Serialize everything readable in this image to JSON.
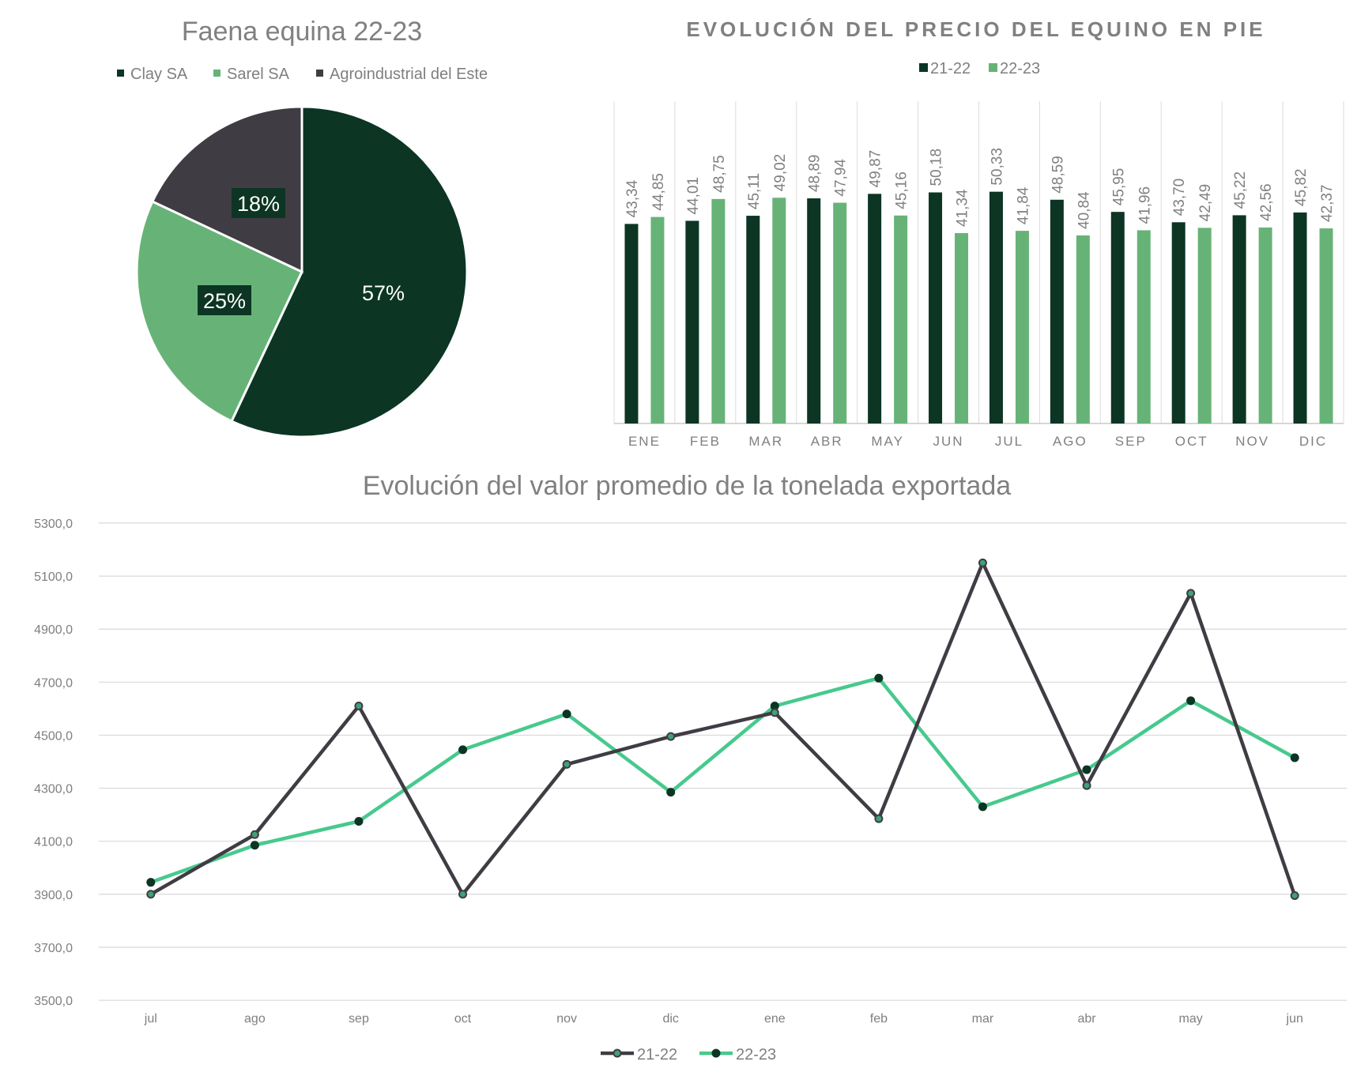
{
  "chart_data": [
    {
      "type": "pie",
      "title": "Faena equina 22-23",
      "labels": [
        "Clay SA",
        "Sarel SA",
        "Agroindustrial del Este"
      ],
      "values": [
        57,
        25,
        18
      ],
      "value_labels": [
        "57%",
        "25%",
        "18%"
      ],
      "colors": [
        "#0c3524",
        "#67b377",
        "#403c43"
      ],
      "legend": "top"
    },
    {
      "type": "bar",
      "title": "EVOLUCIÓN DEL PRECIO DEL EQUINO EN PIE",
      "categories": [
        "ENE",
        "FEB",
        "MAR",
        "ABR",
        "MAY",
        "JUN",
        "JUL",
        "AGO",
        "SEP",
        "OCT",
        "NOV",
        "DIC"
      ],
      "series": [
        {
          "name": "21-22",
          "color": "#0c3524",
          "values": [
            43.34,
            44.01,
            45.11,
            48.89,
            49.87,
            50.18,
            50.33,
            48.59,
            45.95,
            43.7,
            45.22,
            45.82
          ],
          "labels": [
            "43,34",
            "44,01",
            "45,11",
            "48,89",
            "49,87",
            "50,18",
            "50,33",
            "48,59",
            "45,95",
            "43,70",
            "45,22",
            "45,82"
          ]
        },
        {
          "name": "22-23",
          "color": "#67b377",
          "values": [
            44.85,
            48.75,
            49.02,
            47.94,
            45.16,
            41.34,
            41.84,
            40.84,
            41.96,
            42.49,
            42.56,
            42.37
          ],
          "labels": [
            "44,85",
            "48,75",
            "49,02",
            "47,94",
            "45,16",
            "41,34",
            "41,84",
            "40,84",
            "41,96",
            "42,49",
            "42,56",
            "42,37"
          ]
        }
      ],
      "ylim": [
        0,
        70
      ],
      "legend": "top",
      "grid": "vertical separators"
    },
    {
      "type": "line",
      "title": "Evolución del valor promedio de la tonelada exportada",
      "categories": [
        "jul",
        "ago",
        "sep",
        "oct",
        "nov",
        "dic",
        "ene",
        "feb",
        "mar",
        "abr",
        "may",
        "jun"
      ],
      "series": [
        {
          "name": "21-22",
          "color": "#403c43",
          "marker": "#3fa179",
          "values": [
            3900,
            4125,
            4610,
            3900,
            4390,
            4495,
            4585,
            4185,
            5150,
            4310,
            5035,
            3895
          ]
        },
        {
          "name": "22-23",
          "color": "#47c98d",
          "marker": "#0c3524",
          "values": [
            3945,
            4085,
            4175,
            4445,
            4580,
            4285,
            4610,
            4715,
            4230,
            4370,
            4630,
            4415
          ]
        }
      ],
      "yticks": [
        "5300,0",
        "5100,0",
        "4900,0",
        "4700,0",
        "4500,0",
        "4300,0",
        "4100,0",
        "3900,0",
        "3700,0",
        "3500,0"
      ],
      "ylim": [
        3500,
        5300
      ],
      "grid": "horizontal",
      "legend": "bottom"
    }
  ]
}
